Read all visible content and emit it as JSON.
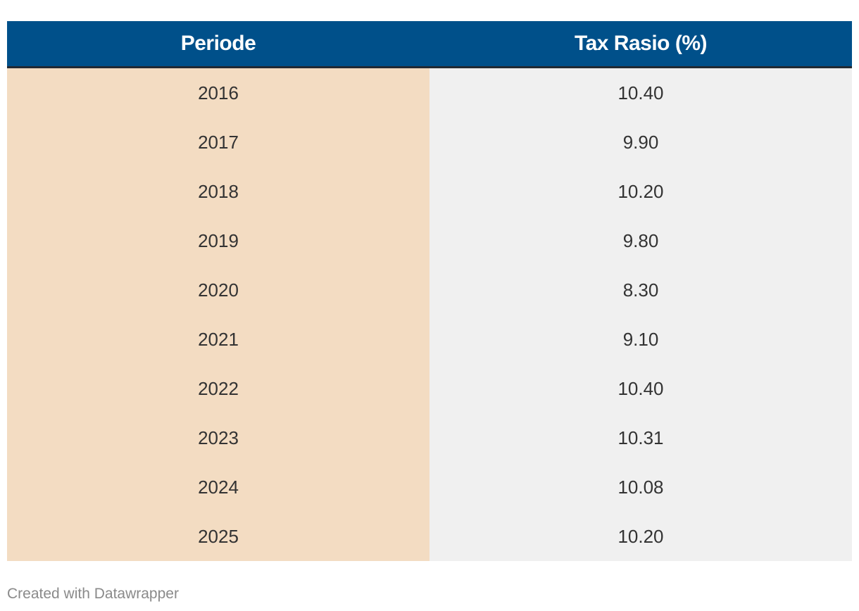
{
  "chart_data": {
    "type": "table",
    "columns": [
      "Periode",
      "Tax Rasio (%)"
    ],
    "rows": [
      [
        "2016",
        "10.40"
      ],
      [
        "2017",
        "9.90"
      ],
      [
        "2018",
        "10.20"
      ],
      [
        "2019",
        "9.80"
      ],
      [
        "2020",
        "8.30"
      ],
      [
        "2021",
        "9.10"
      ],
      [
        "2022",
        "10.40"
      ],
      [
        "2023",
        "10.31"
      ],
      [
        "2024",
        "10.08"
      ],
      [
        "2025",
        "10.20"
      ]
    ],
    "header_color": "#00508a",
    "first_column_color": "#f3dcc2",
    "other_column_color": "#f0f0f0"
  },
  "footer": {
    "credit": "Created with Datawrapper"
  }
}
